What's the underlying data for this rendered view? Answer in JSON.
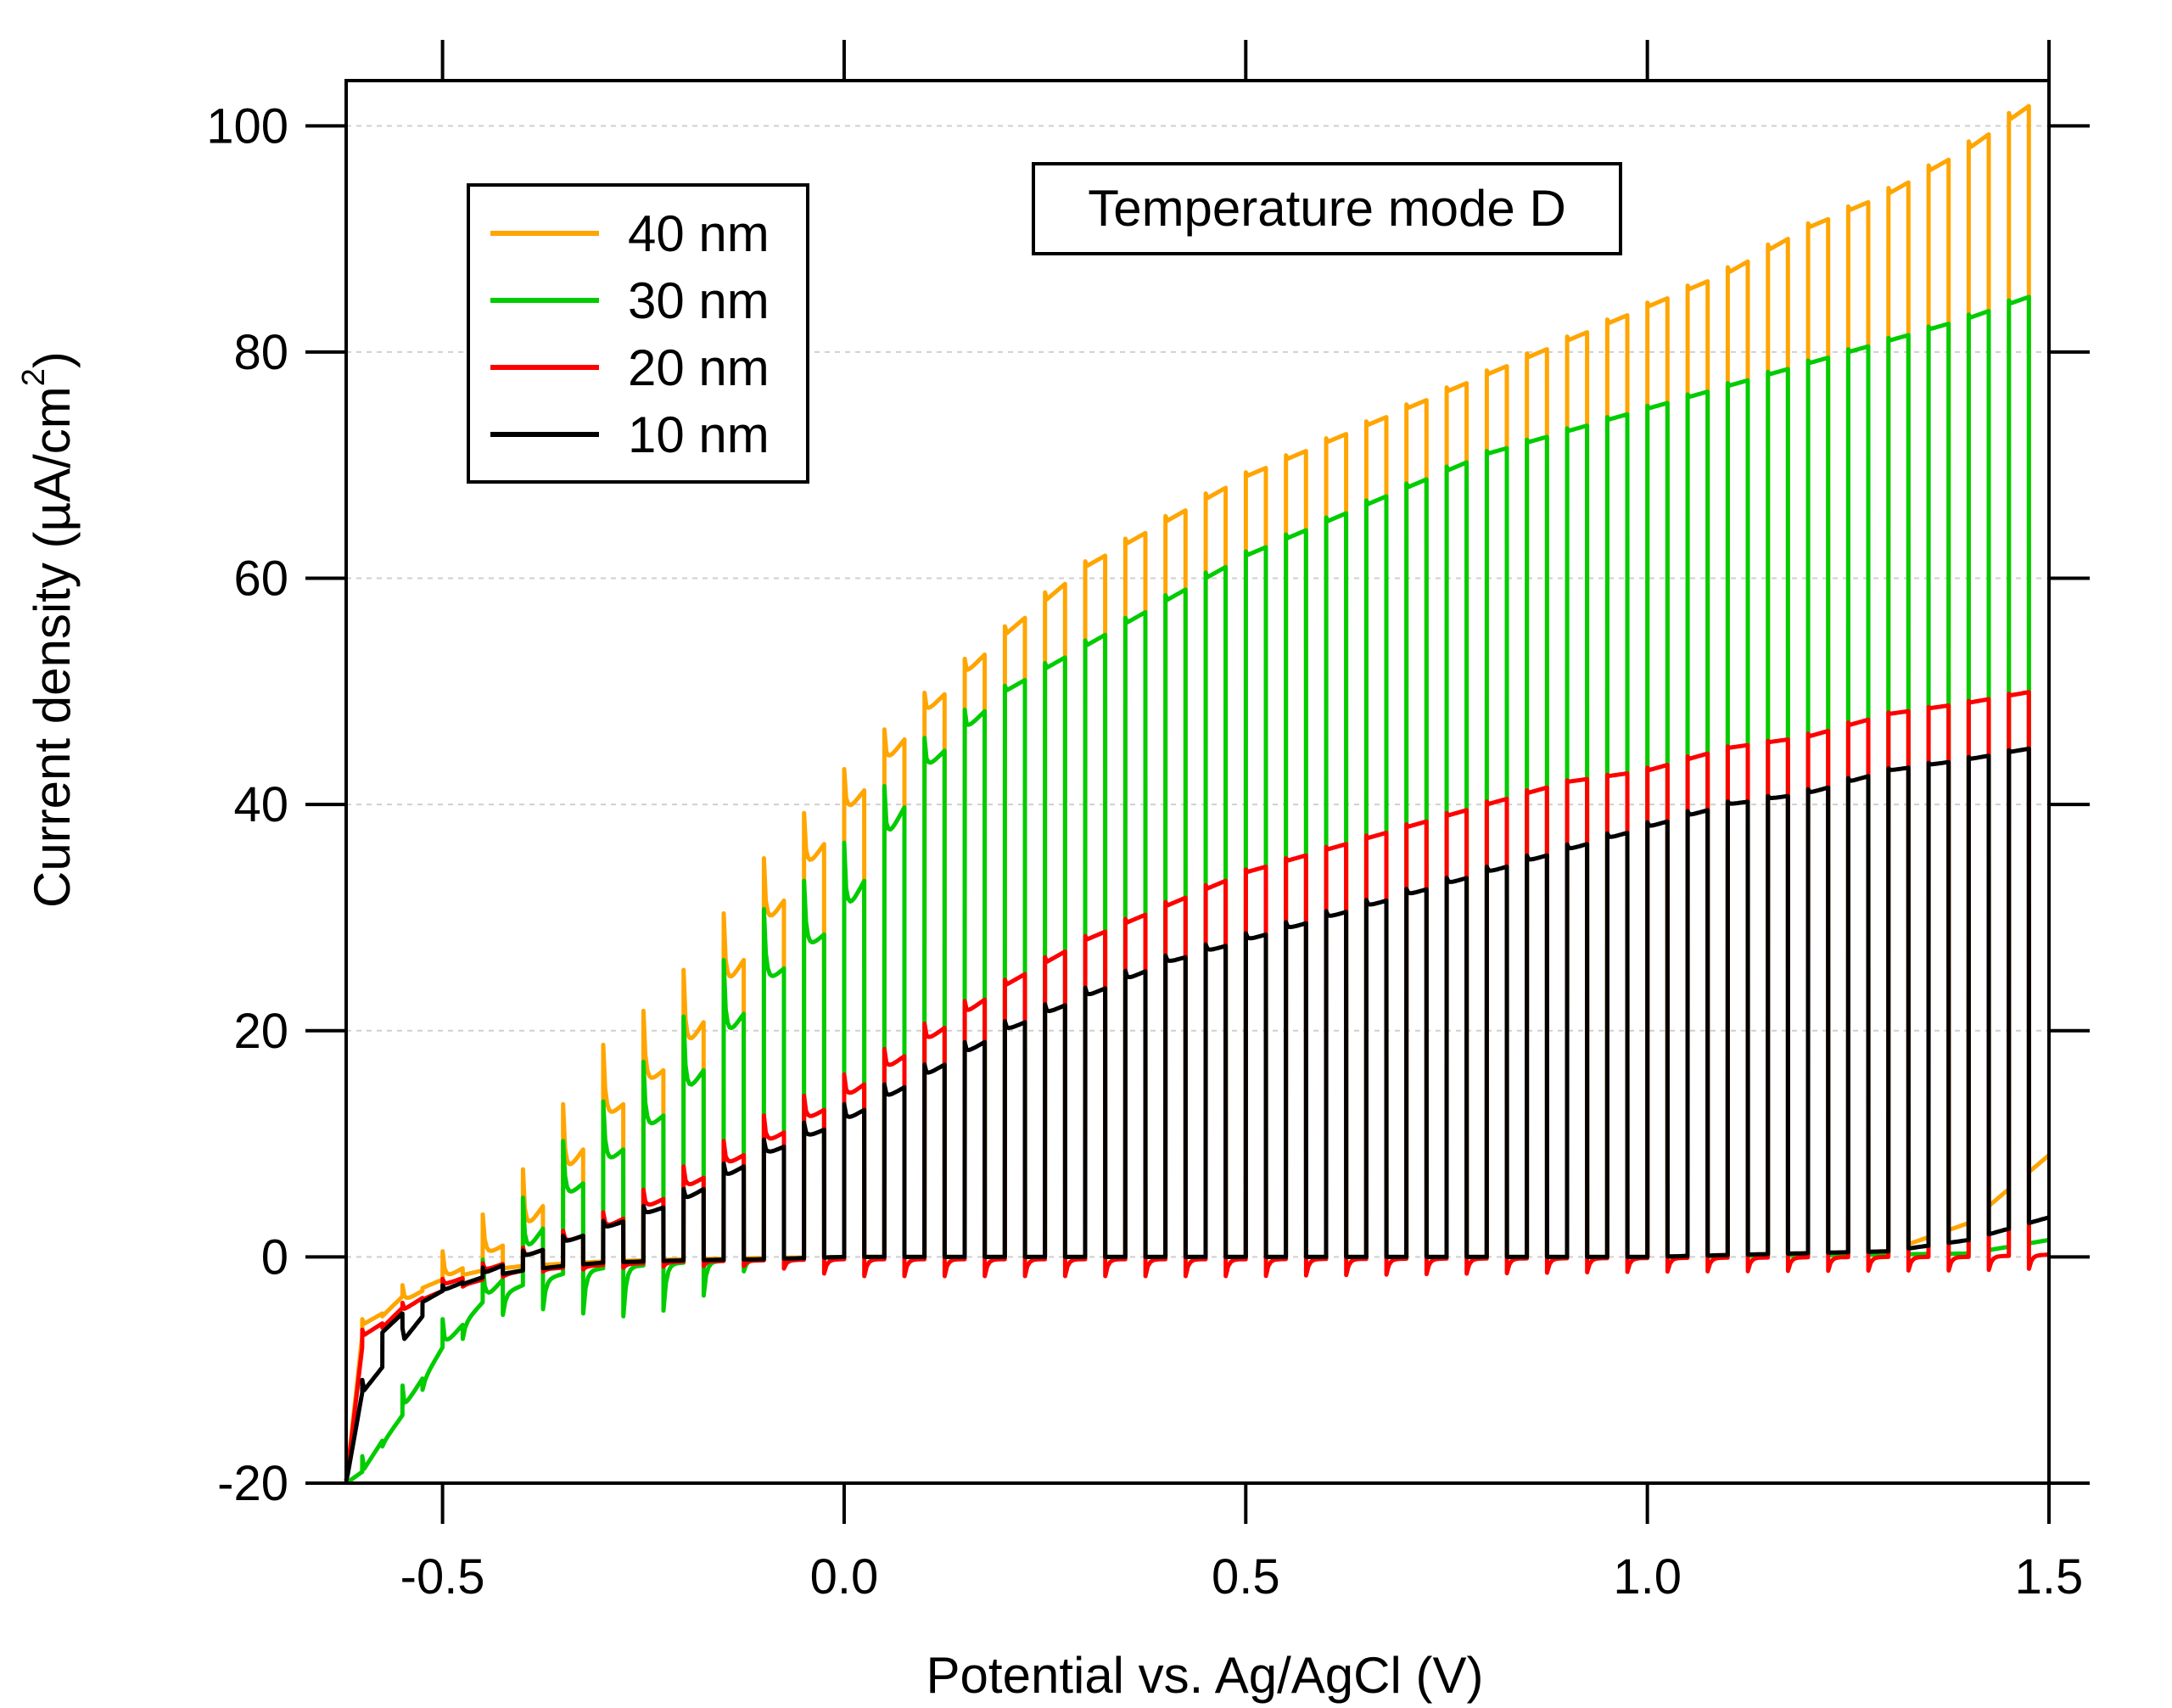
{
  "chart_data": {
    "type": "line",
    "title": "",
    "annotation": "Temperature mode D",
    "xlabel": "Potential vs. Ag/AgCl (V)",
    "ylabel_main": "Current density (µA/cm",
    "ylabel_sup": "2",
    "ylabel_close": ")",
    "xlim": [
      -0.62,
      1.5
    ],
    "ylim": [
      -20,
      104
    ],
    "xticks": [
      -0.5,
      0.0,
      0.5,
      1.0,
      1.5
    ],
    "xtick_labels": [
      "-0.5",
      "0.0",
      "0.5",
      "1.0",
      "1.5"
    ],
    "yticks": [
      -20,
      0,
      20,
      40,
      60,
      80,
      100
    ],
    "ytick_labels": [
      "-20",
      "0",
      "20",
      "40",
      "60",
      "80",
      "100"
    ],
    "grid": "horizontal dashed",
    "legend_placement": "top-left",
    "chop_period_V": 0.05,
    "first_light_on_V": -0.6,
    "last_light_off_V": 1.48,
    "series": [
      {
        "name": "40 nm",
        "color": "#FFA500",
        "dark_current": {
          "x": [
            -0.62,
            -0.6,
            -0.55,
            -0.5,
            -0.45,
            -0.4,
            -0.3,
            -0.2,
            0.0,
            0.5,
            1.0,
            1.3,
            1.4,
            1.5
          ],
          "y": [
            -20,
            -7,
            -3.5,
            -2,
            -1.2,
            -0.8,
            -0.4,
            -0.2,
            0,
            0,
            0,
            0.5,
            3,
            9
          ]
        },
        "photo_plateau": {
          "x": [
            -0.6,
            -0.5,
            -0.4,
            -0.3,
            -0.2,
            -0.1,
            0.0,
            0.1,
            0.2,
            0.3,
            0.4,
            0.5,
            0.6,
            0.7,
            0.8,
            0.9,
            1.0,
            1.1,
            1.2,
            1.3,
            1.4,
            1.48
          ],
          "y": [
            -6,
            -2,
            2,
            12,
            18,
            29,
            39,
            48,
            55,
            61,
            65,
            69,
            72,
            75,
            78,
            81,
            84,
            87,
            91,
            94,
            98,
            102
          ]
        },
        "spike_amplitude": {
          "x": [
            -0.6,
            -0.5,
            -0.4,
            -0.3,
            -0.2,
            -0.1,
            0.0,
            0.1,
            0.2,
            1.5
          ],
          "y": [
            0,
            2,
            4.5,
            6,
            6,
            5,
            3,
            1,
            0,
            0
          ]
        }
      },
      {
        "name": "30 nm",
        "color": "#00CC00",
        "dark_current": {
          "x": [
            -0.62,
            -0.6,
            -0.55,
            -0.5,
            -0.45,
            -0.4,
            -0.35,
            -0.3,
            -0.2,
            -0.1,
            0.0,
            1.0,
            1.4,
            1.5
          ],
          "y": [
            -20,
            -19,
            -14,
            -8,
            -4,
            -2.5,
            -1.5,
            -1,
            -0.5,
            -0.2,
            0,
            0,
            0.3,
            1.5
          ]
        },
        "photo_plateau": {
          "x": [
            -0.6,
            -0.5,
            -0.4,
            -0.35,
            -0.3,
            -0.2,
            -0.1,
            0.0,
            0.1,
            0.2,
            0.3,
            0.4,
            0.5,
            0.6,
            0.7,
            0.8,
            0.9,
            1.0,
            1.1,
            1.2,
            1.3,
            1.4,
            1.48
          ],
          "y": [
            -19,
            -8,
            0,
            5,
            8,
            14,
            24,
            30,
            43,
            50,
            54,
            58,
            62,
            65,
            68,
            71,
            73,
            75,
            77,
            79,
            81,
            83,
            85
          ]
        },
        "spike_amplitude": {
          "x": [
            -0.6,
            -0.5,
            -0.4,
            -0.3,
            -0.2,
            -0.1,
            0.0,
            0.1,
            0.2,
            1.5
          ],
          "y": [
            0,
            1.5,
            4,
            5,
            6,
            6,
            5,
            2,
            0,
            0
          ]
        },
        "off_undershoot": {
          "x": [
            -0.6,
            -0.45,
            -0.35,
            -0.3,
            -0.2,
            -0.15,
            -0.1,
            1.5
          ],
          "y": [
            0,
            1.5,
            3,
            4.5,
            4,
            2,
            0,
            0
          ]
        }
      },
      {
        "name": "20 nm",
        "color": "#FF0000",
        "dark_current": {
          "x": [
            -0.62,
            -0.6,
            -0.55,
            -0.5,
            -0.45,
            -0.4,
            -0.3,
            -0.2,
            -0.1,
            0.0,
            0.5,
            1.0,
            1.3,
            1.4,
            1.5
          ],
          "y": [
            -20,
            -8,
            -4.5,
            -3,
            -2,
            -1.2,
            -0.7,
            -0.4,
            -0.3,
            -0.2,
            -0.2,
            -0.1,
            0,
            0,
            0.2
          ]
        },
        "photo_plateau": {
          "x": [
            -0.6,
            -0.5,
            -0.4,
            -0.3,
            -0.2,
            -0.1,
            0.0,
            0.1,
            0.2,
            0.3,
            0.4,
            0.5,
            0.6,
            0.7,
            0.8,
            0.9,
            1.0,
            1.1,
            1.2,
            1.3,
            1.4,
            1.48
          ],
          "y": [
            -7,
            -2.5,
            0,
            2.5,
            6,
            10,
            14,
            19,
            24,
            28,
            31,
            34,
            36,
            38,
            40,
            42,
            43,
            45,
            46,
            48,
            49,
            50
          ]
        },
        "spike_amplitude": {
          "x": [
            -0.6,
            -0.4,
            -0.3,
            -0.2,
            -0.1,
            0.0,
            0.1,
            0.2,
            1.5
          ],
          "y": [
            0,
            0.5,
            1,
            1.5,
            2,
            1.5,
            1,
            0,
            0
          ]
        },
        "off_undershoot": {
          "x": [
            -0.6,
            -0.1,
            0.0,
            0.5,
            1.0,
            1.5
          ],
          "y": [
            0,
            0.5,
            1.5,
            1.5,
            1.2,
            1.2
          ]
        }
      },
      {
        "name": "10 nm",
        "color": "#000000",
        "dark_current": {
          "x": [
            -0.62,
            -0.6,
            -0.58,
            -0.55,
            -0.5,
            -0.45,
            -0.4,
            -0.35,
            -0.3,
            -0.2,
            -0.1,
            0.0,
            0.5,
            1.0,
            1.3,
            1.4,
            1.5
          ],
          "y": [
            -20,
            -12,
            -7,
            -5,
            -3,
            -1.8,
            -1.2,
            -0.8,
            -0.5,
            -0.3,
            -0.2,
            0,
            0,
            0,
            0.5,
            1.5,
            3.5
          ]
        },
        "photo_plateau": {
          "x": [
            -0.6,
            -0.5,
            -0.4,
            -0.3,
            -0.2,
            -0.1,
            0.0,
            0.1,
            0.2,
            0.3,
            0.4,
            0.5,
            0.6,
            0.7,
            0.8,
            0.9,
            1.0,
            1.1,
            1.2,
            1.3,
            1.4,
            1.48
          ],
          "y": [
            -12,
            -3,
            0,
            2.5,
            5,
            9,
            12,
            16,
            20,
            23,
            26,
            28,
            30,
            32,
            34,
            36,
            38,
            40,
            41,
            43,
            44,
            45
          ]
        },
        "spike_amplitude": {
          "x": [
            -0.6,
            -0.2,
            -0.1,
            0.0,
            0.1,
            1.5
          ],
          "y": [
            0,
            0.5,
            1,
            1,
            0.5,
            0
          ]
        }
      }
    ]
  }
}
